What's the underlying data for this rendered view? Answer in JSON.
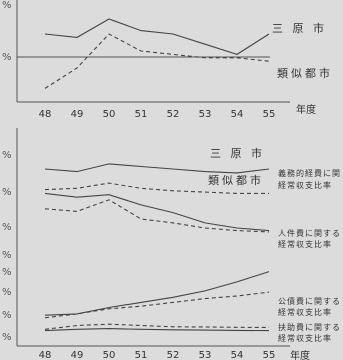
{
  "chart_data": [
    {
      "type": "line",
      "x": [
        "48",
        "49",
        "50",
        "51",
        "52",
        "53",
        "54",
        "55"
      ],
      "xlabel": "年度",
      "ylabel_fragments": [
        "%",
        "%"
      ],
      "series": [
        {
          "name": "三原市",
          "style": "solid",
          "values": [
            40.0,
            39.5,
            42.2,
            40.5,
            40.0,
            38.5,
            37.0,
            40.0
          ]
        },
        {
          "name": "類似都市",
          "style": "dashed",
          "values": [
            32.0,
            35.0,
            40.0,
            37.5,
            37.0,
            36.5,
            36.5,
            36.0
          ]
        }
      ],
      "reference_value": 37,
      "ylim": [
        30,
        45
      ]
    },
    {
      "type": "line",
      "x": [
        "48",
        "49",
        "50",
        "51",
        "52",
        "53",
        "54",
        "55"
      ],
      "xlabel": "年度",
      "ylabel_fragments": [
        "%",
        "%",
        "%",
        "%",
        "%",
        "%",
        "%",
        "%"
      ],
      "legend": [
        "三原市",
        "類似都市"
      ],
      "series": [
        {
          "group": "義務的経費に関する経常収支比率",
          "city": "三原市",
          "style": "solid",
          "values": [
            69,
            68,
            71,
            70,
            69,
            68,
            67.5,
            69
          ]
        },
        {
          "group": "義務的経費に関する経常収支比率",
          "city": "類似都市",
          "style": "dashed",
          "values": [
            61,
            61.5,
            63.5,
            61.5,
            60.5,
            60,
            59.5,
            59.5
          ]
        },
        {
          "group": "人件費に関する経常収支比率",
          "city": "三原市",
          "style": "solid",
          "values": [
            59.5,
            58,
            59,
            55,
            52,
            48,
            46,
            45
          ]
        },
        {
          "group": "人件費に関する経常収支比率",
          "city": "類似都市",
          "style": "dashed",
          "values": [
            53.5,
            52.5,
            57,
            49.5,
            48,
            46,
            45,
            44.5
          ]
        },
        {
          "group": "公債費に関する経常収支比率",
          "city": "三原市",
          "style": "solid",
          "values": [
            12,
            12.5,
            15,
            17,
            19,
            21.5,
            25,
            29
          ]
        },
        {
          "group": "公債費に関する経常収支比率",
          "city": "類似都市",
          "style": "dashed",
          "values": [
            11,
            12.5,
            14.5,
            15.5,
            17,
            18.5,
            19.5,
            21
          ]
        },
        {
          "group": "扶助費に関する経常収支比率",
          "city": "三原市",
          "style": "solid",
          "values": [
            6,
            6.5,
            6.8,
            6.5,
            6.3,
            6.2,
            6.1,
            6.0
          ]
        },
        {
          "group": "扶助費に関する経常収支比率",
          "city": "類似都市",
          "style": "dashed",
          "values": [
            6.5,
            8.0,
            8.5,
            8.0,
            7.5,
            7.4,
            7.3,
            7.2
          ]
        }
      ],
      "ylim": [
        0,
        85
      ]
    }
  ],
  "labels": {
    "top_city": "三 原 市",
    "top_similar": "類似都市",
    "bottom_city": "三 原 市",
    "bottom_similar": "類似都市",
    "ann1_l1": "義務的経費に関",
    "ann1_l2": "経常収支比率",
    "ann2_l1": "人件費に関する",
    "ann2_l2": "経常収支比率",
    "ann3_l1": "公債費に関する",
    "ann3_l2": "経常収支比率",
    "ann4_l1": "扶助費に関する",
    "ann4_l2": "経常収支比率",
    "xunit": "年度"
  },
  "colors": {
    "background": "#dcdcdc",
    "ink": "#333333"
  }
}
